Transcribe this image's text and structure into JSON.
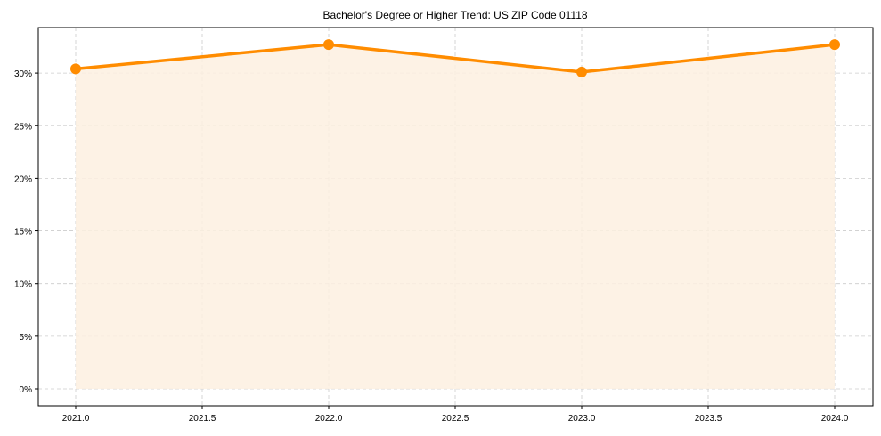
{
  "chart_data": {
    "type": "line",
    "title": "Bachelor's Degree or Higher Trend: US ZIP Code 01118",
    "xlabel": "",
    "ylabel": "",
    "x": [
      2021,
      2022,
      2023,
      2024
    ],
    "series": [
      {
        "name": "Bachelor's Degree or Higher",
        "values": [
          30.4,
          32.7,
          30.1,
          32.7
        ],
        "color": "#ff8c00",
        "fill": "#fdf0e1"
      }
    ],
    "x_ticks": [
      "2021.0",
      "2021.5",
      "2022.0",
      "2022.5",
      "2023.0",
      "2023.5",
      "2024.0"
    ],
    "y_ticks": [
      "0%",
      "5%",
      "10%",
      "15%",
      "20%",
      "25%",
      "30%"
    ],
    "xlim": [
      2020.85,
      2024.15
    ],
    "ylim": [
      -1.6,
      34.3
    ],
    "grid": true,
    "legend": "none"
  }
}
